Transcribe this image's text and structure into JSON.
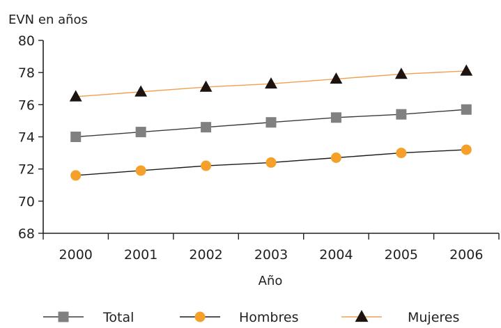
{
  "chart_data": {
    "type": "line",
    "title": "",
    "ylabel": "EVN en años",
    "xlabel": "Año",
    "categories": [
      "2000",
      "2001",
      "2002",
      "2003",
      "2004",
      "2005",
      "2006"
    ],
    "ylim": [
      68,
      80
    ],
    "yticks": [
      68,
      70,
      72,
      74,
      76,
      78,
      80
    ],
    "grid": false,
    "legend_position": "bottom",
    "series": [
      {
        "name": "Total",
        "values": [
          74.0,
          74.3,
          74.6,
          74.9,
          75.2,
          75.4,
          75.7
        ],
        "color": "#808080",
        "line_color": "#3a3a3a",
        "marker": "square"
      },
      {
        "name": "Hombres",
        "values": [
          71.6,
          71.9,
          72.2,
          72.4,
          72.7,
          73.0,
          73.2
        ],
        "color": "#f5a02a",
        "line_color": "#1a1a1a",
        "marker": "circle"
      },
      {
        "name": "Mujeres",
        "values": [
          76.5,
          76.8,
          77.1,
          77.3,
          77.6,
          77.9,
          78.1
        ],
        "color": "#1e140f",
        "line_color": "#f0a050",
        "marker": "triangle"
      }
    ]
  }
}
